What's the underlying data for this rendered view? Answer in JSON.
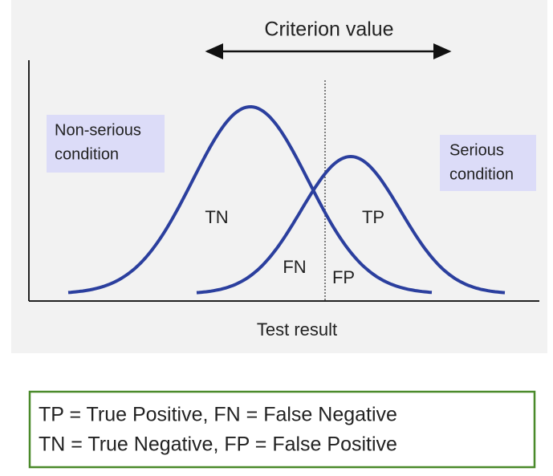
{
  "diagram": {
    "title": "Criterion value",
    "left_label": [
      "Non-serious",
      "condition"
    ],
    "right_label": [
      "Serious",
      "condition"
    ],
    "regions": {
      "tn": "TN",
      "tp": "TP",
      "fn": "FN",
      "fp": "FP"
    },
    "x_label": "Test result"
  },
  "legend": {
    "lines": [
      "TP = True Positive, FN = False Negative",
      "TN = True Negative, FP = False Positive"
    ]
  }
}
